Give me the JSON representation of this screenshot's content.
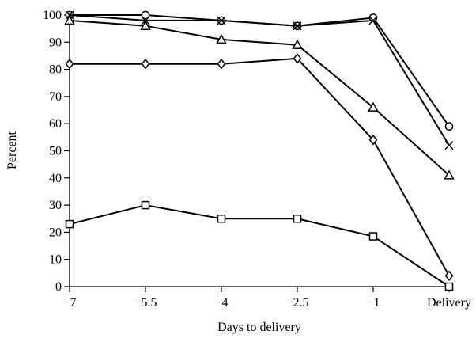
{
  "chart_data": {
    "type": "line",
    "title": "",
    "xlabel": "Days to delivery",
    "ylabel": "Percent",
    "x_tick_labels": [
      "−7",
      "−5.5",
      "−4",
      "−2.5",
      "−1",
      "Delivery"
    ],
    "x": [
      -7,
      -5.5,
      -4,
      -2.5,
      -1,
      0.5
    ],
    "y_ticks": [
      0,
      10,
      20,
      30,
      40,
      50,
      60,
      70,
      80,
      90,
      100
    ],
    "ylim": [
      0,
      100
    ],
    "grid": false,
    "legend": "none",
    "series": [
      {
        "marker": "circle",
        "values": [
          100,
          100,
          98,
          96,
          99,
          59
        ]
      },
      {
        "marker": "cross",
        "values": [
          100,
          98,
          98,
          96,
          98,
          52
        ]
      },
      {
        "marker": "triangle",
        "values": [
          98,
          96,
          91,
          89,
          66,
          41
        ]
      },
      {
        "marker": "diamond",
        "values": [
          82,
          82,
          82,
          84,
          54,
          4
        ]
      },
      {
        "marker": "square",
        "values": [
          23,
          30,
          25,
          25,
          18.5,
          0
        ]
      }
    ]
  }
}
